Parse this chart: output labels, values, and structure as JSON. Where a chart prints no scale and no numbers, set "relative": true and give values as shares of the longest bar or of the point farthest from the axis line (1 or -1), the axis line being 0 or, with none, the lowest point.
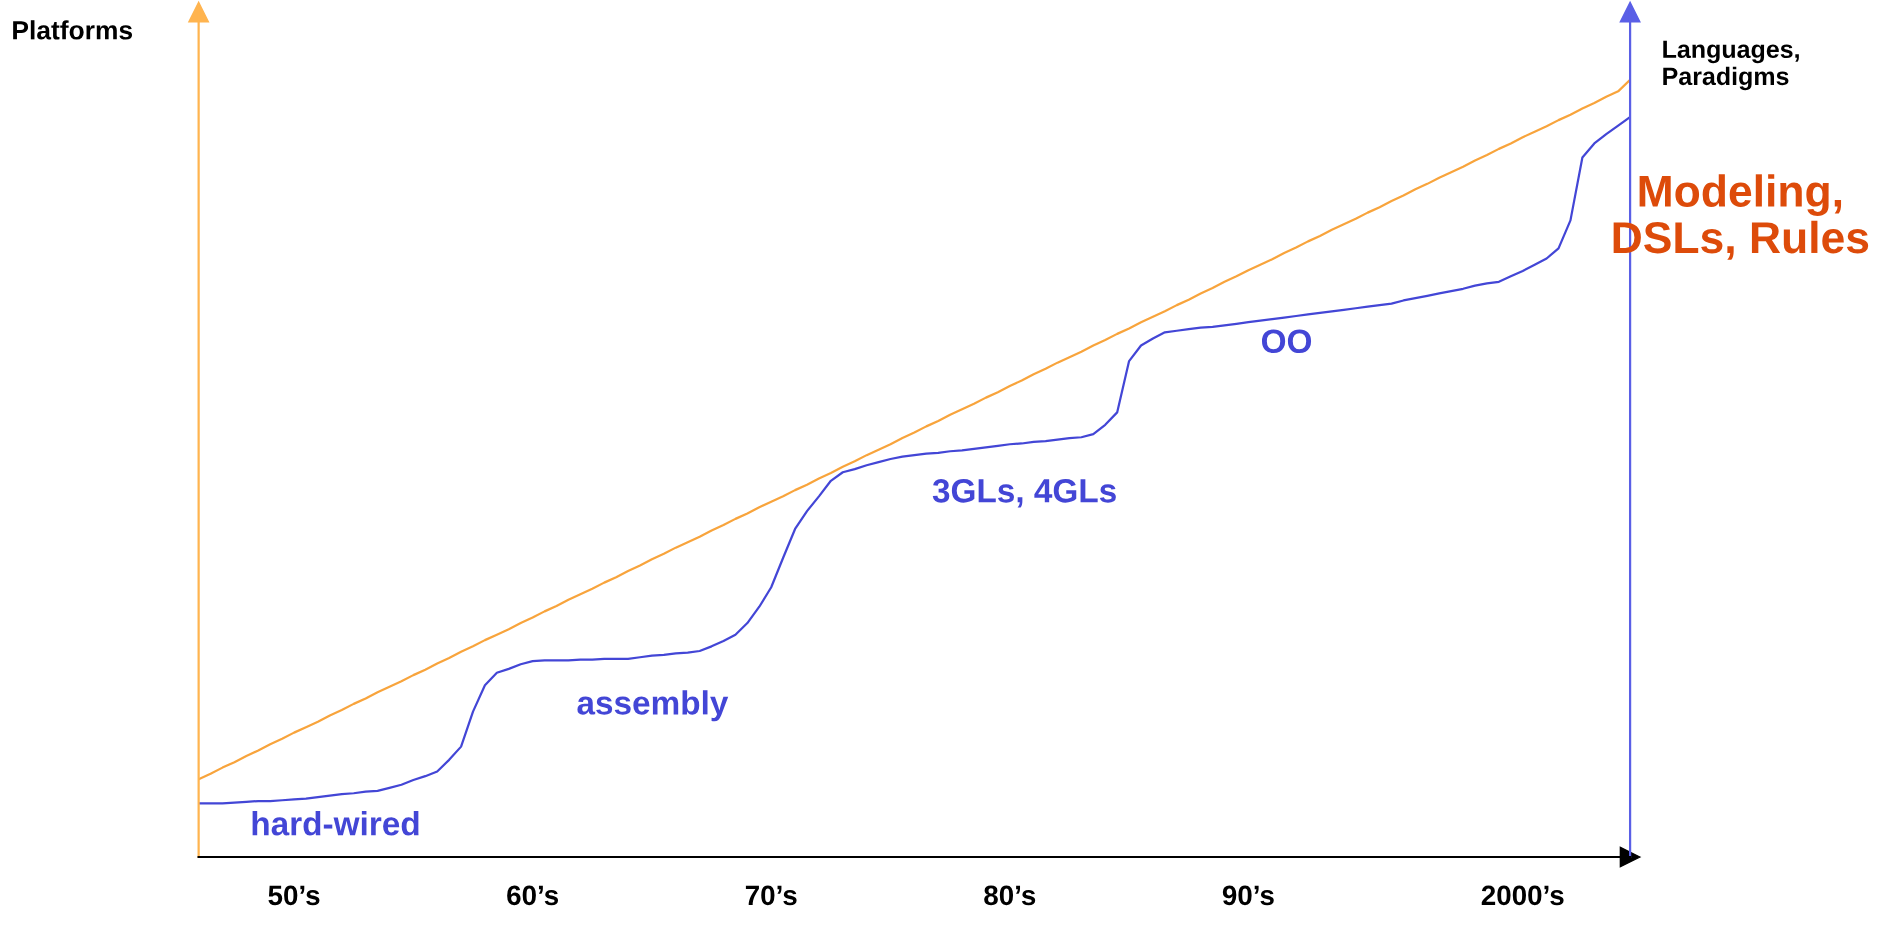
{
  "chart_data": {
    "type": "line",
    "relative": true,
    "ylabel": "Platforms",
    "y2label": "Languages,\nParadigms",
    "categories": [
      null,
      null,
      null,
      null,
      null,
      null,
      null,
      null,
      "50’s",
      null,
      null,
      null,
      null,
      null,
      null,
      null,
      null,
      null,
      null,
      null,
      null,
      null,
      null,
      null,
      null,
      null,
      null,
      null,
      "60’s",
      null,
      null,
      null,
      null,
      null,
      null,
      null,
      null,
      null,
      null,
      null,
      null,
      null,
      null,
      null,
      null,
      null,
      null,
      null,
      "70’s",
      null,
      null,
      null,
      null,
      null,
      null,
      null,
      null,
      null,
      null,
      null,
      null,
      null,
      null,
      null,
      null,
      null,
      null,
      null,
      "80’s",
      null,
      null,
      null,
      null,
      null,
      null,
      null,
      null,
      null,
      null,
      null,
      null,
      null,
      null,
      null,
      null,
      null,
      null,
      null,
      "90’s",
      null,
      null,
      null,
      null,
      null,
      null,
      null,
      null,
      null,
      null,
      null,
      null,
      null,
      null,
      null,
      null,
      null,
      null,
      null,
      null,
      null,
      null,
      "2000’s",
      null,
      null,
      null,
      null,
      null,
      null,
      null,
      null,
      null
    ],
    "series": [
      {
        "color": "#f8a43c",
        "values": [
          0.1,
          0.107,
          0.115,
          0.122,
          0.13,
          0.137,
          0.145,
          0.152,
          0.16,
          0.167,
          0.174,
          0.182,
          0.189,
          0.197,
          0.204,
          0.212,
          0.219,
          0.226,
          0.234,
          0.241,
          0.249,
          0.256,
          0.264,
          0.271,
          0.279,
          0.286,
          0.293,
          0.301,
          0.308,
          0.316,
          0.323,
          0.331,
          0.338,
          0.345,
          0.353,
          0.36,
          0.368,
          0.375,
          0.383,
          0.39,
          0.398,
          0.405,
          0.412,
          0.42,
          0.427,
          0.435,
          0.442,
          0.45,
          0.457,
          0.464,
          0.472,
          0.479,
          0.487,
          0.494,
          0.502,
          0.509,
          0.517,
          0.524,
          0.531,
          0.539,
          0.546,
          0.554,
          0.561,
          0.569,
          0.576,
          0.583,
          0.591,
          0.598,
          0.606,
          0.613,
          0.621,
          0.628,
          0.636,
          0.643,
          0.65,
          0.658,
          0.665,
          0.673,
          0.68,
          0.688,
          0.695,
          0.702,
          0.71,
          0.717,
          0.725,
          0.732,
          0.74,
          0.747,
          0.755,
          0.762,
          0.769,
          0.777,
          0.784,
          0.792,
          0.799,
          0.807,
          0.814,
          0.821,
          0.829,
          0.836,
          0.844,
          0.851,
          0.859,
          0.866,
          0.874,
          0.881,
          0.888,
          0.896,
          0.903,
          0.911,
          0.918,
          0.926,
          0.933,
          0.94,
          0.948,
          0.955,
          0.963,
          0.97,
          0.978,
          0.985,
          1.0
        ]
      },
      {
        "color": "#4346d6",
        "values": [
          0.069,
          0.069,
          0.069,
          0.07,
          0.071,
          0.072,
          0.072,
          0.073,
          0.074,
          0.075,
          0.077,
          0.079,
          0.081,
          0.082,
          0.084,
          0.085,
          0.089,
          0.093,
          0.099,
          0.104,
          0.11,
          0.125,
          0.142,
          0.187,
          0.221,
          0.237,
          0.242,
          0.248,
          0.252,
          0.253,
          0.253,
          0.253,
          0.254,
          0.254,
          0.255,
          0.255,
          0.255,
          0.257,
          0.259,
          0.26,
          0.262,
          0.263,
          0.265,
          0.271,
          0.278,
          0.286,
          0.301,
          0.322,
          0.347,
          0.385,
          0.422,
          0.445,
          0.464,
          0.484,
          0.495,
          0.499,
          0.504,
          0.508,
          0.512,
          0.515,
          0.517,
          0.519,
          0.52,
          0.522,
          0.523,
          0.525,
          0.527,
          0.529,
          0.531,
          0.532,
          0.534,
          0.535,
          0.537,
          0.539,
          0.54,
          0.544,
          0.556,
          0.572,
          0.638,
          0.658,
          0.667,
          0.675,
          0.677,
          0.679,
          0.681,
          0.682,
          0.684,
          0.686,
          0.688,
          0.69,
          0.692,
          0.694,
          0.696,
          0.698,
          0.7,
          0.702,
          0.704,
          0.706,
          0.708,
          0.71,
          0.712,
          0.716,
          0.719,
          0.722,
          0.725,
          0.728,
          0.731,
          0.735,
          0.738,
          0.74,
          0.747,
          0.754,
          0.762,
          0.77,
          0.783,
          0.819,
          0.9,
          0.918,
          0.93,
          0.941,
          0.952
        ]
      }
    ],
    "annotations": [
      "hard-wired",
      "assembly",
      "3GLs, 4GLs",
      "OO",
      "Modeling,\nDSLs, Rules"
    ],
    "grid": false,
    "legend": false,
    "marker": "none",
    "line_style": "solid"
  }
}
